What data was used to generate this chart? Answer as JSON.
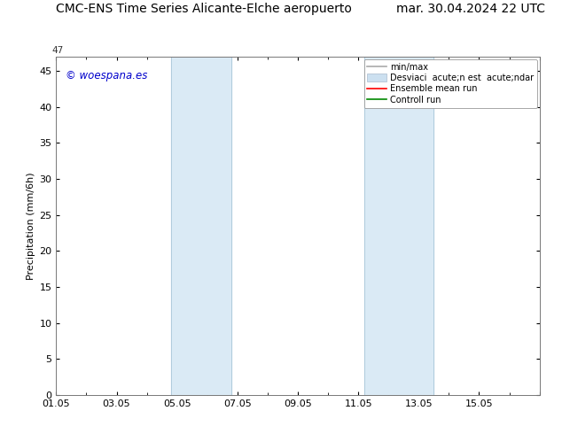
{
  "title_left": "CMC-ENS Time Series Alicante-Elche aeropuerto",
  "title_right": "mar. 30.04.2024 22 UTC",
  "ylabel": "Precipitation (mm/6h)",
  "xlim": [
    0,
    16
  ],
  "ylim": [
    0,
    47
  ],
  "yticks": [
    0,
    5,
    10,
    15,
    20,
    25,
    30,
    35,
    40,
    45
  ],
  "shaded_bands": [
    {
      "xmin": 3.8,
      "xmax": 5.8
    },
    {
      "xmin": 10.2,
      "xmax": 12.5
    }
  ],
  "shade_color": "#daeaf5",
  "band_line_color": "#b0ccdd",
  "watermark": "© woespana.es",
  "watermark_color": "#0000cc",
  "bg_color": "#ffffff",
  "tick_label_size": 8,
  "title_fontsize": 10,
  "ylabel_fontsize": 8,
  "xtick_positions": [
    0,
    2,
    4,
    6,
    8,
    10,
    12,
    14,
    16
  ],
  "xtick_labels": [
    "01.05",
    "03.05",
    "05.05",
    "07.05",
    "09.05",
    "11.05",
    "13.05",
    "15.05",
    ""
  ],
  "legend_minmax_color": "#aaaaaa",
  "legend_dev_color": "#cce0f0",
  "legend_ensemble_color": "#ff0000",
  "legend_control_color": "#008800",
  "top_label": "47",
  "legend_label_minmax": "min/max",
  "legend_label_dev": "Desviaci  acute;n est  acute;ndar",
  "legend_label_ens": "Ensemble mean run",
  "legend_label_ctrl": "Controll run"
}
